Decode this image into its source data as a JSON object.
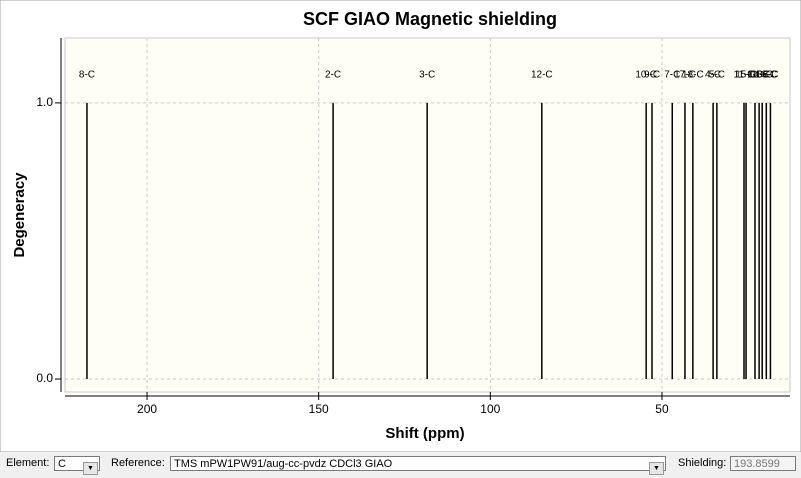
{
  "chart_data": {
    "type": "stick",
    "title": "SCF GIAO Magnetic shielding",
    "x_label": "Shift (ppm)",
    "y_label": "Degeneracy",
    "x": [
      217.5,
      145.8,
      118.4,
      85.0,
      54.6,
      52.9,
      47.0,
      43.3,
      41.0,
      35.1,
      34.0,
      26.1,
      25.5,
      22.9,
      21.7,
      20.8,
      19.6,
      18.4
    ],
    "values": [
      1,
      1,
      1,
      1,
      1,
      1,
      1,
      1,
      1,
      1,
      1,
      1,
      1,
      1,
      1,
      1,
      1,
      1
    ],
    "labels": [
      "8-C",
      "2-C",
      "3-C",
      "12-C",
      "10-C",
      "9-C",
      "7-C",
      "17-C",
      "18-C",
      "4-C",
      "5-C",
      "11-C",
      "15-C",
      "1-C",
      "14-C",
      "13-C",
      "16-C",
      "6-C"
    ],
    "color": "#000000",
    "xlim": [
      223.9,
      12.7
    ],
    "xticks": [
      200,
      150,
      100,
      50
    ],
    "ylim": [
      -0.047,
      1.235
    ],
    "yticks": [
      {
        "value": 0,
        "label": "0.0"
      },
      {
        "value": 1,
        "label": "1.0"
      }
    ],
    "grid": true
  },
  "toolbar": {
    "element_label": "Element:",
    "element": "C",
    "reference_label": "Reference:",
    "reference": "TMS mPW1PW91/aug-cc-pvdz CDCl3 GIAO",
    "shielding_label": "Shielding:",
    "shielding": "193.8599"
  }
}
